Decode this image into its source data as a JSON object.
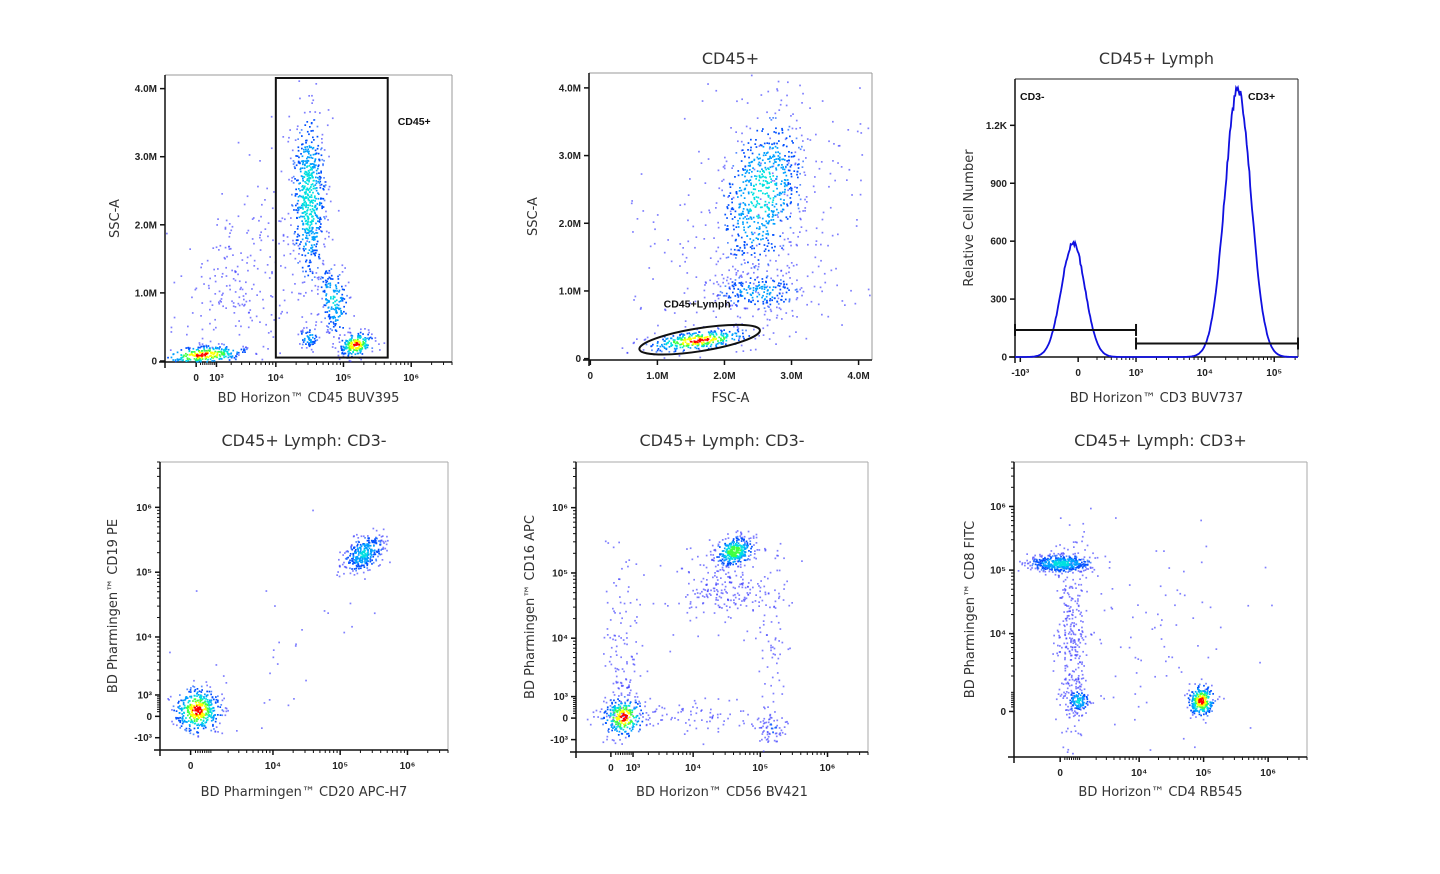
{
  "colormap": [
    "#3a3aff",
    "#0050ff",
    "#00a0ff",
    "#00e0e0",
    "#40ff40",
    "#ffff00",
    "#ff0000"
  ],
  "histogram_color": "#1010e0",
  "chart_data": [
    {
      "type": "scatter",
      "title": "",
      "xlabel": "BD Horizon™ CD45 BUV395",
      "ylabel": "SSC-A",
      "x_scale": "biexponential",
      "y_scale": "linear",
      "xlim": [
        -1700,
        4000000
      ],
      "ylim": [
        -15000,
        4200000
      ],
      "x_ticks": [
        {
          "value": 0,
          "label": "0"
        },
        {
          "value": 1000,
          "label": "10³"
        },
        {
          "value": 10000,
          "label": "10⁴"
        },
        {
          "value": 100000,
          "label": "10⁵"
        },
        {
          "value": 1000000,
          "label": "10⁶"
        }
      ],
      "y_ticks": [
        {
          "value": 0,
          "label": "0"
        },
        {
          "value": 1000000,
          "label": "1.0M"
        },
        {
          "value": 2000000,
          "label": "2.0M"
        },
        {
          "value": 3000000,
          "label": "3.0M"
        },
        {
          "value": 4000000,
          "label": "4.0M"
        }
      ],
      "populations": [
        {
          "center_x": 300,
          "center_y": 100000,
          "spread_x": 0.3,
          "spread_y": 70000,
          "events": 280,
          "peak_density": 1.0,
          "corr": 0.3
        },
        {
          "center_x": 3000,
          "center_y": 1100000,
          "spread_x": 0.5,
          "spread_y": 800000,
          "events": 260,
          "peak_density": 0.03,
          "corr": 0.4
        },
        {
          "center_x": 30000,
          "center_y": 2400000,
          "spread_x": 0.13,
          "spread_y": 650000,
          "events": 600,
          "peak_density": 0.55,
          "corr": 0.0
        },
        {
          "center_x": 70000,
          "center_y": 900000,
          "spread_x": 0.12,
          "spread_y": 280000,
          "events": 180,
          "peak_density": 0.45,
          "corr": -0.3
        },
        {
          "center_x": 150000,
          "center_y": 250000,
          "spread_x": 0.12,
          "spread_y": 90000,
          "events": 220,
          "peak_density": 1.0,
          "corr": 0.2
        },
        {
          "center_x": 30000,
          "center_y": 350000,
          "spread_x": 0.08,
          "spread_y": 80000,
          "events": 60,
          "peak_density": 0.4,
          "corr": 0.0
        }
      ],
      "gates": [
        {
          "shape": "rectangle",
          "label": "CD45+",
          "x": [
            10000,
            450000
          ],
          "y": [
            50000,
            4200000
          ]
        }
      ]
    },
    {
      "type": "scatter",
      "title": "CD45+",
      "xlabel": "FSC-A",
      "ylabel": "SSC-A",
      "x_scale": "linear",
      "y_scale": "linear",
      "xlim": [
        -20000,
        4200000
      ],
      "ylim": [
        -20000,
        4220000
      ],
      "x_ticks": [
        {
          "value": 0,
          "label": "0"
        },
        {
          "value": 1000000,
          "label": "1.0M"
        },
        {
          "value": 2000000,
          "label": "2.0M"
        },
        {
          "value": 3000000,
          "label": "3.0M"
        },
        {
          "value": 4000000,
          "label": "4.0M"
        }
      ],
      "y_ticks": [
        {
          "value": 0,
          "label": "0"
        },
        {
          "value": 1000000,
          "label": "1.0M"
        },
        {
          "value": 2000000,
          "label": "2.0M"
        },
        {
          "value": 3000000,
          "label": "3.0M"
        },
        {
          "value": 4000000,
          "label": "4.0M"
        }
      ],
      "populations": [
        {
          "center_x": 2550000,
          "center_y": 2450000,
          "spread_x": 330000,
          "spread_y": 620000,
          "events": 650,
          "peak_density": 0.5,
          "corr": 0.3
        },
        {
          "center_x": 2500000,
          "center_y": 1000000,
          "spread_x": 350000,
          "spread_y": 150000,
          "events": 220,
          "peak_density": 0.35,
          "corr": 0.0
        },
        {
          "center_x": 1600000,
          "center_y": 280000,
          "spread_x": 380000,
          "spread_y": 80000,
          "events": 320,
          "peak_density": 1.0,
          "corr": 0.5
        },
        {
          "center_x": 2500000,
          "center_y": 1500000,
          "spread_x": 1000000,
          "spread_y": 1200000,
          "events": 320,
          "peak_density": 0.03,
          "corr": 0.3
        }
      ],
      "gates": [
        {
          "shape": "ellipse",
          "label": "CD45+Lymph",
          "center": [
            1630000,
            280000
          ],
          "radii": [
            910000,
            170000
          ]
        }
      ]
    },
    {
      "type": "histogram",
      "title": "CD45+ Lymph",
      "xlabel": "BD Horizon™ CD3 BUV737",
      "ylabel": "Relative Cell Number",
      "x_scale": "biexponential",
      "y_scale": "linear",
      "xlim": [
        -1200,
        220000
      ],
      "ylim": [
        0,
        1440
      ],
      "x_ticks": [
        {
          "value": -1000,
          "label": "-10³"
        },
        {
          "value": 0,
          "label": "0"
        },
        {
          "value": 1000,
          "label": "10³"
        },
        {
          "value": 10000,
          "label": "10⁴"
        },
        {
          "value": 100000,
          "label": "10⁵"
        }
      ],
      "y_ticks": [
        {
          "value": 0,
          "label": "0"
        },
        {
          "value": 300,
          "label": "300"
        },
        {
          "value": 600,
          "label": "600"
        },
        {
          "value": 900,
          "label": "900"
        },
        {
          "value": 1200,
          "label": "1.2K"
        }
      ],
      "peaks": [
        {
          "center": -50,
          "height": 590,
          "spread": 0.17
        },
        {
          "center": 30000,
          "height": 1380,
          "spread": 0.19
        }
      ],
      "gates": [
        {
          "shape": "interval",
          "label": "CD3-",
          "x": [
            -1200,
            1000
          ],
          "y": 140
        },
        {
          "shape": "interval",
          "label": "CD3+",
          "x": [
            1000,
            220000
          ],
          "y": 70
        }
      ]
    },
    {
      "type": "scatter",
      "title": "CD45+ Lymph: CD3-",
      "xlabel": "BD Pharmingen™ CD20 APC-H7",
      "ylabel": "BD Pharmingen™ CD19 PE",
      "x_scale": "biexponential",
      "y_scale": "biexponential",
      "xlim": [
        -1500,
        4000000
      ],
      "ylim": [
        -1800,
        5000000
      ],
      "x_ticks": [
        {
          "value": 0,
          "label": "0"
        },
        {
          "value": 10000,
          "label": "10⁴"
        },
        {
          "value": 100000,
          "label": "10⁵"
        },
        {
          "value": 1000000,
          "label": "10⁶"
        }
      ],
      "y_ticks": [
        {
          "value": -1000,
          "label": "-10³"
        },
        {
          "value": 0,
          "label": "0"
        },
        {
          "value": 1000,
          "label": "10³"
        },
        {
          "value": 10000,
          "label": "10⁴"
        },
        {
          "value": 100000,
          "label": "10⁵"
        },
        {
          "value": 1000000,
          "label": "10⁶"
        }
      ],
      "populations": [
        {
          "center_x": 220000,
          "center_y": 200000,
          "spread_x": 0.15,
          "spread_y": 0.15,
          "events": 320,
          "peak_density": 0.45,
          "corr": 0.4
        },
        {
          "center_x": 250,
          "center_y": 300,
          "spread_x": 0.17,
          "spread_y": 0.17,
          "events": 420,
          "peak_density": 1.0,
          "corr": 0.0
        },
        {
          "center_x": 8000,
          "center_y": 5000,
          "spread_x": 1.0,
          "spread_y": 1.0,
          "events": 35,
          "peak_density": 0.02,
          "corr": 0.6
        }
      ],
      "gates": []
    },
    {
      "type": "scatter",
      "title": "CD45+ Lymph: CD3-",
      "xlabel": "BD Horizon™ CD56 BV421",
      "ylabel": "BD Pharmingen™ CD16 APC",
      "x_scale": "biexponential",
      "y_scale": "biexponential",
      "xlim": [
        -1800,
        4000000
      ],
      "ylim": [
        -1800,
        5000000
      ],
      "x_ticks": [
        {
          "value": 0,
          "label": "0"
        },
        {
          "value": 1000,
          "label": "10³"
        },
        {
          "value": 10000,
          "label": "10⁴"
        },
        {
          "value": 100000,
          "label": "10⁵"
        },
        {
          "value": 1000000,
          "label": "10⁶"
        }
      ],
      "y_ticks": [
        {
          "value": -1000,
          "label": "-10³"
        },
        {
          "value": 0,
          "label": "0"
        },
        {
          "value": 1000,
          "label": "10³"
        },
        {
          "value": 10000,
          "label": "10⁴"
        },
        {
          "value": 100000,
          "label": "10⁵"
        },
        {
          "value": 1000000,
          "label": "10⁶"
        }
      ],
      "populations": [
        {
          "center_x": 40000,
          "center_y": 220000,
          "spread_x": 0.14,
          "spread_y": 0.11,
          "events": 320,
          "peak_density": 0.75,
          "corr": 0.2
        },
        {
          "center_x": 30000,
          "center_y": 60000,
          "spread_x": 0.35,
          "spread_y": 0.3,
          "events": 220,
          "peak_density": 0.03,
          "corr": 0.0
        },
        {
          "center_x": 500,
          "center_y": 80,
          "spread_x": 0.15,
          "spread_y": 0.15,
          "events": 260,
          "peak_density": 1.0,
          "corr": 0.0
        },
        {
          "center_x": 500,
          "center_y": 3000,
          "spread_x": 0.15,
          "spread_y": 0.9,
          "events": 150,
          "peak_density": 0.02,
          "corr": 0.0
        },
        {
          "center_x": 8000,
          "center_y": 100,
          "spread_x": 0.9,
          "spread_y": 0.12,
          "events": 110,
          "peak_density": 0.02,
          "corr": 0.0
        },
        {
          "center_x": 150000,
          "center_y": -400,
          "spread_x": 0.12,
          "spread_y": 0.12,
          "events": 60,
          "peak_density": 0.1,
          "corr": 0.0
        },
        {
          "center_x": 150000,
          "center_y": 5000,
          "spread_x": 0.1,
          "spread_y": 0.9,
          "events": 80,
          "peak_density": 0.02,
          "corr": 0.0
        }
      ],
      "gates": []
    },
    {
      "type": "scatter",
      "title": "CD45+ Lymph: CD3+",
      "xlabel": "BD Horizon™ CD4 RB545",
      "ylabel": "BD Pharmingen™ CD8 FITC",
      "x_scale": "biexponential",
      "y_scale": "biexponential",
      "xlim": [
        -3000,
        4000000
      ],
      "ylim": [
        -3000,
        5000000
      ],
      "x_ticks": [
        {
          "value": 0,
          "label": "0"
        },
        {
          "value": 10000,
          "label": "10⁴"
        },
        {
          "value": 100000,
          "label": "10⁵"
        },
        {
          "value": 1000000,
          "label": "10⁶"
        }
      ],
      "y_ticks": [
        {
          "value": 0,
          "label": "0"
        },
        {
          "value": 10000,
          "label": "10⁴"
        },
        {
          "value": 100000,
          "label": "10⁵"
        },
        {
          "value": 1000000,
          "label": "10⁶"
        }
      ],
      "populations": [
        {
          "center_x": 0,
          "center_y": 130000,
          "spread_x": 0.25,
          "spread_y": 0.07,
          "events": 450,
          "peak_density": 0.5,
          "corr": 0.0
        },
        {
          "center_x": 500,
          "center_y": 8000,
          "spread_x": 0.12,
          "spread_y": 0.85,
          "events": 320,
          "peak_density": 0.08,
          "corr": 0.0
        },
        {
          "center_x": 800,
          "center_y": 500,
          "spread_x": 0.09,
          "spread_y": 0.1,
          "events": 110,
          "peak_density": 0.45,
          "corr": 0.0
        },
        {
          "center_x": 90000,
          "center_y": 500,
          "spread_x": 0.1,
          "spread_y": 0.12,
          "events": 260,
          "peak_density": 1.0,
          "corr": 0.0
        },
        {
          "center_x": 20000,
          "center_y": 8000,
          "spread_x": 0.8,
          "spread_y": 0.9,
          "events": 90,
          "peak_density": 0.02,
          "corr": 0.0
        }
      ],
      "gates": []
    }
  ]
}
